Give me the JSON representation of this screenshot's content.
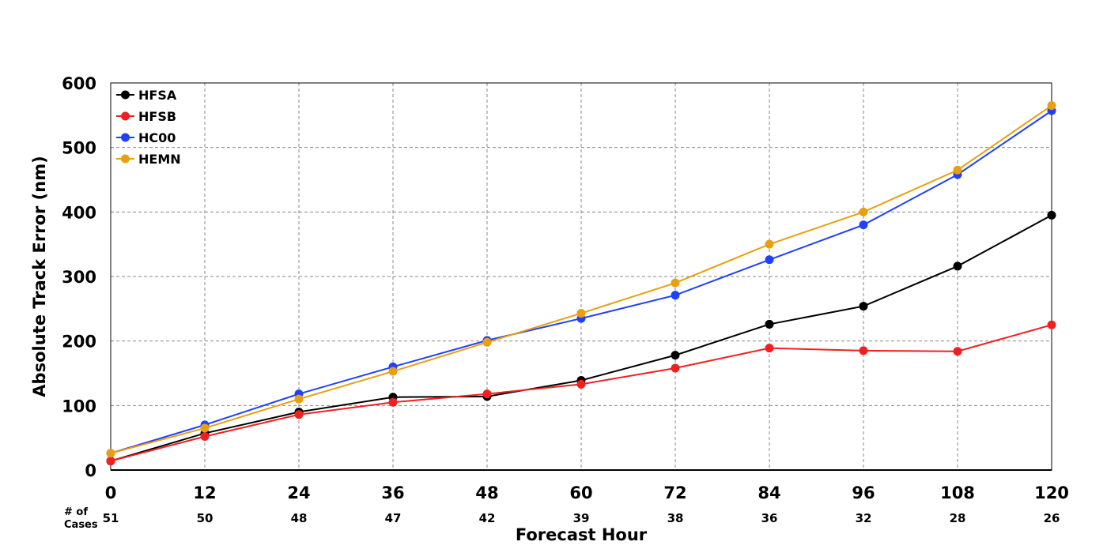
{
  "chart_data": {
    "type": "line",
    "title": "",
    "xlabel": "Forecast Hour",
    "ylabel": "Absolute Track Error (nm)",
    "x": [
      0,
      12,
      24,
      36,
      48,
      60,
      72,
      84,
      96,
      108,
      120
    ],
    "xlim": [
      0,
      120
    ],
    "ylim": [
      0,
      600
    ],
    "yticks": [
      0,
      100,
      200,
      300,
      400,
      500,
      600
    ],
    "grid": true,
    "legend_position": "top-left",
    "cases_label": [
      "# of",
      "Cases"
    ],
    "cases": [
      51,
      50,
      48,
      47,
      42,
      39,
      38,
      36,
      32,
      28,
      26
    ],
    "series": [
      {
        "name": "HFSA",
        "color": "#000000",
        "values": [
          14,
          57,
          90,
          113,
          114,
          139,
          178,
          226,
          254,
          316,
          395
        ]
      },
      {
        "name": "HFSB",
        "color": "#f02020",
        "values": [
          14,
          52,
          86,
          105,
          118,
          133,
          158,
          189,
          185,
          184,
          225
        ]
      },
      {
        "name": "HC00",
        "color": "#2040ff",
        "values": [
          26,
          70,
          118,
          160,
          201,
          235,
          271,
          326,
          380,
          458,
          557
        ]
      },
      {
        "name": "HEMN",
        "color": "#e8a010",
        "values": [
          26,
          65,
          110,
          153,
          198,
          243,
          290,
          350,
          400,
          465,
          565
        ]
      }
    ]
  }
}
